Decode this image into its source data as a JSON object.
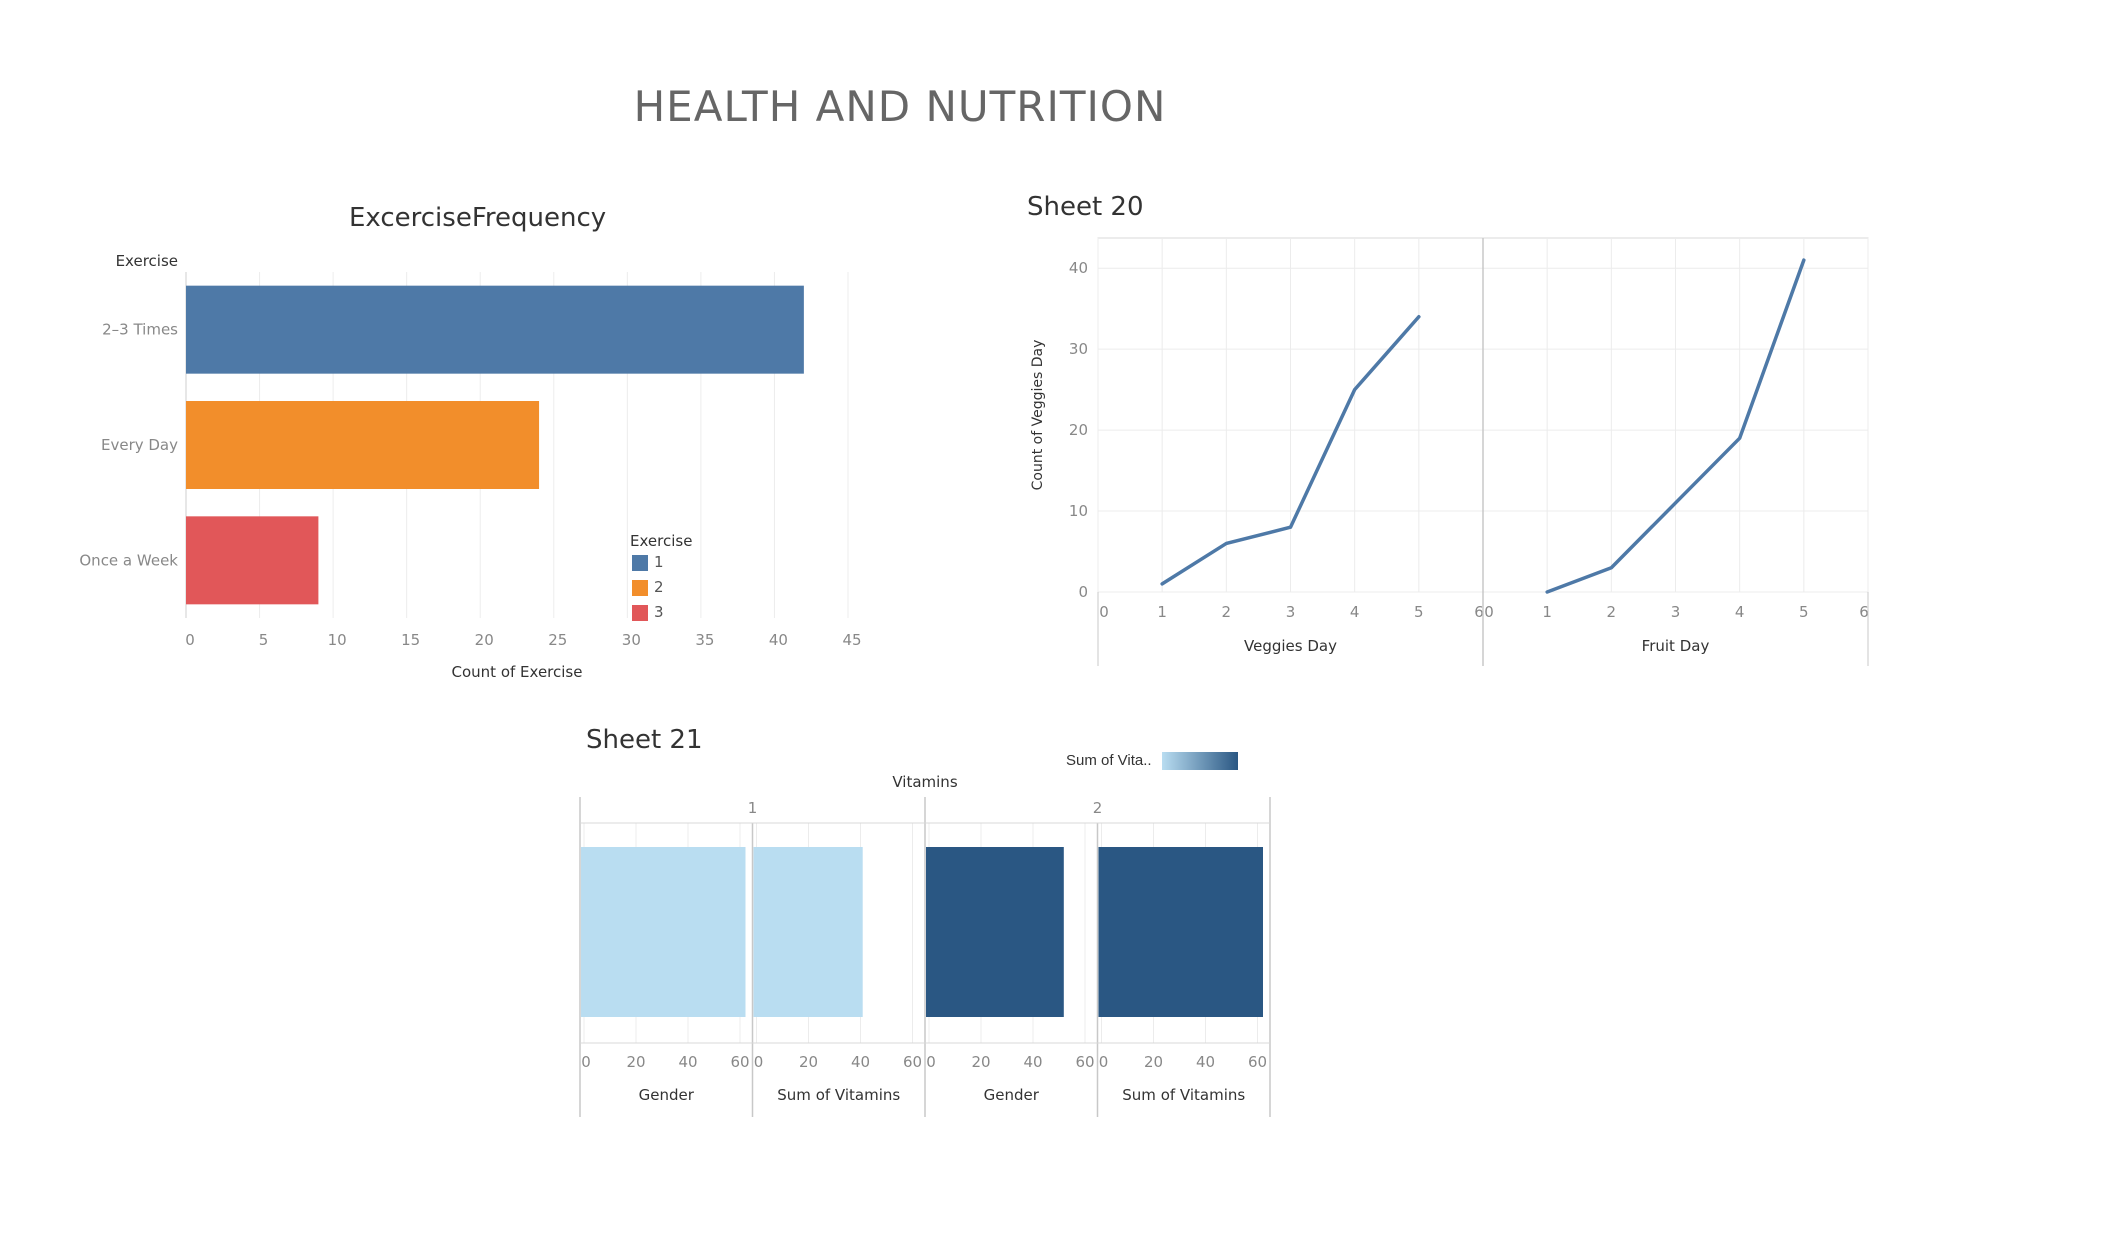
{
  "dashboard_title": "HEALTH AND NUTRITION",
  "colors": {
    "blue": "#4e79a7",
    "orange": "#f28e2b",
    "red": "#e15759",
    "light_blue": "#b9ddf1",
    "dark_blue": "#2a5783",
    "grid": "#ececec",
    "axis_text": "#888888"
  },
  "chart_data": [
    {
      "id": "exercise",
      "type": "bar",
      "orientation": "horizontal",
      "title": "ExcerciseFrequency",
      "row_header": "Exercise",
      "categories": [
        "2–3 Times",
        "Every Day",
        "Once a Week"
      ],
      "values": [
        42,
        24,
        9
      ],
      "colors": [
        "#4e79a7",
        "#f28e2b",
        "#e15759"
      ],
      "xlabel": "Count of Exercise",
      "xlim": [
        0,
        45
      ],
      "xticks": [
        0,
        5,
        10,
        15,
        20,
        25,
        30,
        35,
        40,
        45
      ],
      "grid": true,
      "legend": {
        "title": "Exercise",
        "items": [
          "1",
          "2",
          "3"
        ],
        "colors": [
          "#4e79a7",
          "#f28e2b",
          "#e15759"
        ],
        "position": "inside-bottom-right"
      }
    },
    {
      "id": "sheet20",
      "type": "line",
      "title": "Sheet 20",
      "ylabel": "Count of Veggies Day",
      "ylim": [
        0,
        42
      ],
      "yticks": [
        0,
        10,
        20,
        30,
        40
      ],
      "grid": true,
      "panels": [
        {
          "xlabel": "Veggies Day",
          "xticks": [
            0,
            1,
            2,
            3,
            4,
            5,
            6
          ],
          "x": [
            1,
            2,
            3,
            4,
            5
          ],
          "y": [
            1,
            6,
            8,
            25,
            34
          ]
        },
        {
          "xlabel": "Fruit Day",
          "xticks": [
            0,
            1,
            2,
            3,
            4,
            5,
            6
          ],
          "x": [
            1,
            2,
            3,
            4,
            5
          ],
          "y": [
            0,
            3,
            11,
            19,
            41
          ]
        }
      ]
    },
    {
      "id": "sheet21",
      "type": "bar",
      "title": "Sheet 21",
      "column_header": "Vitamins",
      "color_legend": {
        "title": "Sum of Vita..",
        "position": "top-right"
      },
      "xticks": [
        0,
        20,
        40,
        60
      ],
      "groups": [
        {
          "label": "1",
          "panels": [
            {
              "xlabel": "Gender",
              "value": 67
            },
            {
              "xlabel": "Sum of Vitamins",
              "value": 42
            }
          ]
        },
        {
          "label": "2",
          "panels": [
            {
              "xlabel": "Gender",
              "value": 53
            },
            {
              "xlabel": "Sum of Vitamins",
              "value": 66
            }
          ]
        }
      ]
    }
  ]
}
